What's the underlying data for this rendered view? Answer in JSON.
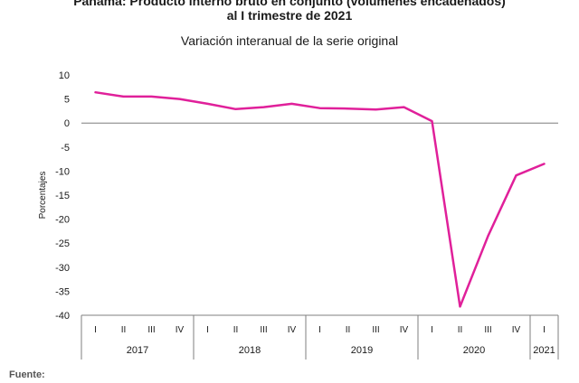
{
  "header": {
    "title_line1": "Panamá: Producto interno bruto en conjunto (volúmenes encadenados)",
    "title_line2": "al I trimestre de 2021",
    "subtitle": "Variación interanual de la serie original"
  },
  "footer": {
    "source_label": "Fuente:"
  },
  "colors": {
    "series": "#e0209a",
    "axis": "#7f7f7f",
    "zero_line": "#7f7f7f",
    "text": "#1a1a1a"
  },
  "chart_data": {
    "type": "line",
    "title": "Variación interanual de la serie original",
    "ylabel": "Porcentajes",
    "ylim": [
      -40,
      10
    ],
    "yticks": [
      10,
      5,
      0,
      -5,
      -10,
      -15,
      -20,
      -25,
      -30,
      -35,
      -40
    ],
    "grid": false,
    "legend": "none",
    "x": [
      "I 2017",
      "II 2017",
      "III 2017",
      "IV 2017",
      "I 2018",
      "II 2018",
      "III 2018",
      "IV 2018",
      "I 2019",
      "II 2019",
      "III 2019",
      "IV 2019",
      "I 2020",
      "II 2020",
      "III 2020",
      "IV 2020",
      "I 2021"
    ],
    "quarters": [
      "I",
      "II",
      "III",
      "IV",
      "I",
      "II",
      "III",
      "IV",
      "I",
      "II",
      "III",
      "IV",
      "I",
      "II",
      "III",
      "IV",
      "I"
    ],
    "years": [
      {
        "label": "2017",
        "quarters": 4
      },
      {
        "label": "2018",
        "quarters": 4
      },
      {
        "label": "2019",
        "quarters": 4
      },
      {
        "label": "2020",
        "quarters": 4
      },
      {
        "label": "2021",
        "quarters": 1
      }
    ],
    "series": [
      {
        "values": [
          6.4,
          5.5,
          5.5,
          5.0,
          4.0,
          2.9,
          3.3,
          4.0,
          3.1,
          3.0,
          2.8,
          3.3,
          0.4,
          -38.2,
          -23.5,
          -10.9,
          -8.5
        ]
      }
    ]
  }
}
